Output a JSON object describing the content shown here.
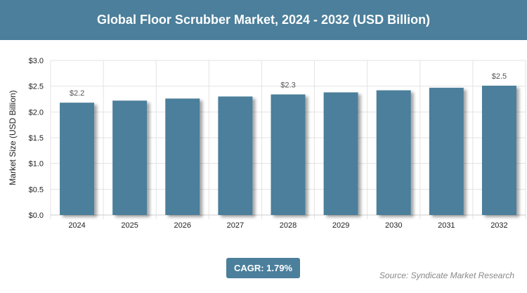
{
  "header": {
    "title": "Global Floor Scrubber Market, 2024 - 2032 (USD Billion)"
  },
  "chart_data": {
    "type": "bar",
    "title": "Global Floor Scrubber Market, 2024 - 2032 (USD Billion)",
    "xlabel": "",
    "ylabel": "Market Size (USD Billion)",
    "categories": [
      "2024",
      "2025",
      "2026",
      "2027",
      "2028",
      "2029",
      "2030",
      "2031",
      "2032"
    ],
    "values": [
      2.18,
      2.22,
      2.26,
      2.3,
      2.34,
      2.38,
      2.42,
      2.47,
      2.51
    ],
    "data_labels": {
      "0": "$2.2",
      "4": "$2.3",
      "8": "$2.5"
    },
    "ylim": [
      0,
      3.0
    ],
    "yticks": [
      "$0.0",
      "$0.5",
      "$1.0",
      "$1.5",
      "$2.0",
      "$2.5",
      "$3.0"
    ],
    "grid": true,
    "bar_color": "#4b7f9b"
  },
  "footer": {
    "cagr": "CAGR: 1.79%",
    "source": "Source: Syndicate Market Research"
  }
}
